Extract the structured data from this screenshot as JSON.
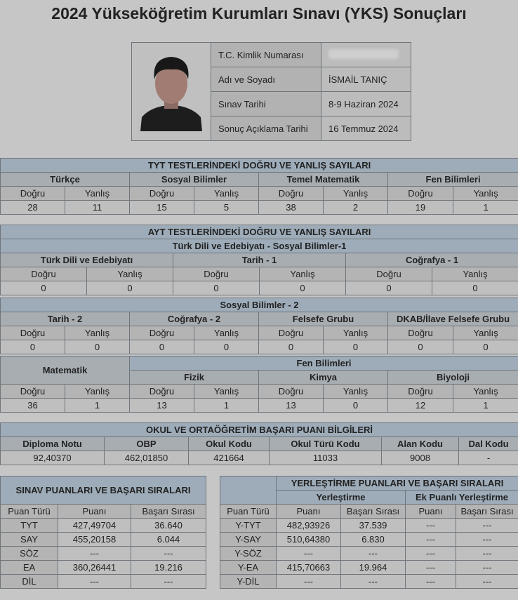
{
  "title": "2024 Yükseköğretim Kurumları Sınavı (YKS) Sonuçları",
  "labels": {
    "d": "Doğru",
    "y": "Yanlış"
  },
  "info": {
    "rows": [
      {
        "label": "T.C. Kimlik Numarası",
        "value": ""
      },
      {
        "label": "Adı ve Soyadı",
        "value": "İSMAİL TANIÇ"
      },
      {
        "label": "Sınav Tarihi",
        "value": "8-9 Haziran 2024"
      },
      {
        "label": "Sonuç Açıklama Tarihi",
        "value": "16 Temmuz 2024"
      }
    ]
  },
  "tyt": {
    "title": "TYT TESTLERİNDEKİ DOĞRU VE YANLIŞ SAYILARI",
    "groups": [
      {
        "name": "Türkçe",
        "d": "28",
        "y": "11"
      },
      {
        "name": "Sosyal Bilimler",
        "d": "15",
        "y": "5"
      },
      {
        "name": "Temel Matematik",
        "d": "38",
        "y": "2"
      },
      {
        "name": "Fen Bilimleri",
        "d": "19",
        "y": "1"
      }
    ]
  },
  "ayt1": {
    "title": "AYT TESTLERİNDEKİ DOĞRU VE YANLIŞ SAYILARI",
    "subtitle": "Türk Dili ve Edebiyatı - Sosyal Bilimler-1",
    "groups": [
      {
        "name": "Türk Dili ve Edebiyatı",
        "d": "0",
        "y": "0"
      },
      {
        "name": "Tarih - 1",
        "d": "0",
        "y": "0"
      },
      {
        "name": "Coğrafya - 1",
        "d": "0",
        "y": "0"
      }
    ]
  },
  "ayt2": {
    "title": "Sosyal Bilimler - 2",
    "groups": [
      {
        "name": "Tarih - 2",
        "d": "0",
        "y": "0"
      },
      {
        "name": "Coğrafya - 2",
        "d": "0",
        "y": "0"
      },
      {
        "name": "Felsefe Grubu",
        "d": "0",
        "y": "0"
      },
      {
        "name": "DKAB/İlave Felsefe Grubu",
        "d": "0",
        "y": "0"
      }
    ]
  },
  "ayt3": {
    "mat": {
      "name": "Matematik",
      "d": "36",
      "y": "1"
    },
    "fen_title": "Fen Bilimleri",
    "groups": [
      {
        "name": "Fizik",
        "d": "13",
        "y": "1"
      },
      {
        "name": "Kimya",
        "d": "13",
        "y": "0"
      },
      {
        "name": "Biyoloji",
        "d": "12",
        "y": "1"
      }
    ]
  },
  "okul": {
    "title": "OKUL VE ORTAÖĞRETİM BAŞARI PUANI BİLGİLERİ",
    "headers": [
      "Diploma Notu",
      "OBP",
      "Okul Kodu",
      "Okul Türü Kodu",
      "Alan Kodu",
      "Dal Kodu"
    ],
    "values": [
      "92,40370",
      "462,01850",
      "421664",
      "11033",
      "9008",
      "-"
    ]
  },
  "sinav": {
    "title": "SINAV PUANLARI VE BAŞARI SIRALARI",
    "headers": [
      "Puan Türü",
      "Puanı",
      "Başarı Sırası"
    ],
    "rows": [
      [
        "TYT",
        "427,49704",
        "36.640"
      ],
      [
        "SAY",
        "455,20158",
        "6.044"
      ],
      [
        "SÖZ",
        "---",
        "---"
      ],
      [
        "EA",
        "360,26441",
        "19.216"
      ],
      [
        "DİL",
        "---",
        "---"
      ]
    ]
  },
  "yer": {
    "title": "YERLEŞTİRME PUANLARI VE BAŞARI SIRALARI",
    "sub": [
      "Yerleştirme",
      "Ek Puanlı Yerleştirme"
    ],
    "headers": [
      "Puan Türü",
      "Puanı",
      "Başarı Sırası",
      "Puanı",
      "Başarı Sırası"
    ],
    "rows": [
      [
        "Y-TYT",
        "482,93926",
        "37.539",
        "---",
        "---"
      ],
      [
        "Y-SAY",
        "510,64380",
        "6.830",
        "---",
        "---"
      ],
      [
        "Y-SÖZ",
        "---",
        "---",
        "---",
        "---"
      ],
      [
        "Y-EA",
        "415,70663",
        "19.964",
        "---",
        "---"
      ],
      [
        "Y-DİL",
        "---",
        "---",
        "---",
        "---"
      ]
    ]
  }
}
